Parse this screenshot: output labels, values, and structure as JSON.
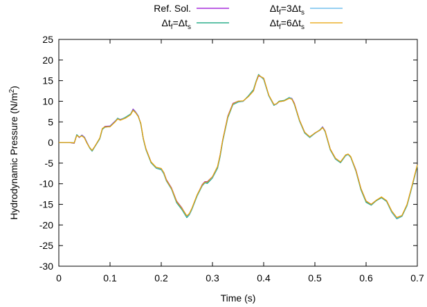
{
  "chart_data": {
    "type": "line",
    "xlabel": "Time (s)",
    "ylabel": "Hydrodynamic Pressure (N/m²)",
    "xlim": [
      0,
      0.7
    ],
    "ylim": [
      -30,
      25
    ],
    "xticks": [
      "0",
      "0.1",
      "0.2",
      "0.3",
      "0.4",
      "0.5",
      "0.6",
      "0.7"
    ],
    "yticks": [
      "25",
      "20",
      "15",
      "10",
      "5",
      "0",
      "-5",
      "-10",
      "-15",
      "-20",
      "-25",
      "-30"
    ],
    "grid": false,
    "legend_position": "top",
    "x": [
      0.0,
      0.02,
      0.03,
      0.035,
      0.04,
      0.045,
      0.05,
      0.055,
      0.06,
      0.065,
      0.07,
      0.08,
      0.085,
      0.09,
      0.1,
      0.11,
      0.115,
      0.12,
      0.13,
      0.14,
      0.145,
      0.15,
      0.155,
      0.16,
      0.165,
      0.17,
      0.18,
      0.19,
      0.2,
      0.205,
      0.21,
      0.22,
      0.23,
      0.24,
      0.25,
      0.255,
      0.26,
      0.27,
      0.28,
      0.285,
      0.29,
      0.3,
      0.31,
      0.315,
      0.32,
      0.33,
      0.34,
      0.35,
      0.36,
      0.37,
      0.38,
      0.385,
      0.39,
      0.4,
      0.41,
      0.42,
      0.425,
      0.43,
      0.44,
      0.45,
      0.455,
      0.46,
      0.47,
      0.48,
      0.49,
      0.5,
      0.51,
      0.515,
      0.52,
      0.53,
      0.54,
      0.55,
      0.56,
      0.565,
      0.57,
      0.58,
      0.59,
      0.6,
      0.61,
      0.62,
      0.63,
      0.64,
      0.65,
      0.66,
      0.67,
      0.68,
      0.69,
      0.7
    ],
    "series": [
      {
        "name": "Ref. Sol.",
        "color": "#9400d3",
        "values": [
          0.0,
          0.0,
          -0.2,
          1.8,
          1.2,
          1.8,
          1.3,
          0.0,
          -1.2,
          -2.0,
          -1.0,
          1.0,
          3.3,
          3.9,
          4.0,
          5.2,
          5.8,
          5.6,
          6.0,
          6.8,
          8.1,
          7.4,
          6.5,
          4.6,
          0.9,
          -1.5,
          -4.7,
          -6.1,
          -6.4,
          -7.3,
          -9.0,
          -11.0,
          -14.2,
          -15.8,
          -17.9,
          -17.3,
          -16.0,
          -12.8,
          -10.2,
          -9.5,
          -9.5,
          -8.3,
          -5.9,
          -3.0,
          0.6,
          6.4,
          9.5,
          10.0,
          10.0,
          11.2,
          12.5,
          14.6,
          16.2,
          15.6,
          11.4,
          9.2,
          9.3,
          9.9,
          10.1,
          10.8,
          10.7,
          9.5,
          5.4,
          2.5,
          1.3,
          2.3,
          3.0,
          3.8,
          2.8,
          -1.6,
          -3.8,
          -4.8,
          -3.1,
          -2.9,
          -3.5,
          -6.6,
          -11.2,
          -14.2,
          -15.0,
          -14.0,
          -13.3,
          -14.1,
          -16.7,
          -18.3,
          -17.8,
          -15.1,
          -10.4,
          -5.5
        ]
      },
      {
        "name": "Δtf=Δts",
        "color": "#009e73",
        "values": [
          0.0,
          0.0,
          -0.1,
          1.9,
          1.3,
          1.7,
          1.2,
          -0.1,
          -1.3,
          -2.1,
          -1.1,
          0.9,
          3.2,
          3.7,
          3.9,
          5.1,
          5.9,
          5.5,
          6.1,
          6.9,
          7.9,
          7.3,
          6.4,
          4.5,
          0.8,
          -1.7,
          -4.9,
          -6.2,
          -6.6,
          -7.6,
          -9.3,
          -11.3,
          -14.6,
          -16.2,
          -18.2,
          -17.5,
          -16.2,
          -13.0,
          -10.5,
          -9.8,
          -9.9,
          -8.6,
          -6.2,
          -3.4,
          0.3,
          6.0,
          9.2,
          9.8,
          10.0,
          11.3,
          12.8,
          14.8,
          16.5,
          15.3,
          11.3,
          9.0,
          9.4,
          10.0,
          10.2,
          10.9,
          10.6,
          9.2,
          5.2,
          2.3,
          1.2,
          2.2,
          3.1,
          3.7,
          2.6,
          -1.8,
          -4.0,
          -4.9,
          -3.2,
          -2.9,
          -3.6,
          -6.9,
          -11.5,
          -14.5,
          -15.2,
          -14.1,
          -13.4,
          -14.3,
          -16.9,
          -18.5,
          -17.9,
          -15.3,
          -10.6,
          -5.7
        ]
      },
      {
        "name": "Δtf=3Δts",
        "color": "#56b4e9",
        "values": [
          0.0,
          0.0,
          -0.1,
          1.8,
          1.3,
          1.7,
          1.2,
          -0.1,
          -1.2,
          -2.0,
          -1.1,
          1.0,
          3.3,
          3.8,
          3.9,
          5.1,
          5.8,
          5.5,
          6.0,
          6.8,
          7.9,
          7.3,
          6.4,
          4.6,
          0.9,
          -1.6,
          -4.8,
          -6.1,
          -6.5,
          -7.5,
          -9.2,
          -11.2,
          -14.4,
          -16.0,
          -18.0,
          -17.4,
          -16.1,
          -12.9,
          -10.4,
          -9.7,
          -9.7,
          -8.5,
          -6.0,
          -3.2,
          0.4,
          6.2,
          9.3,
          9.9,
          10.0,
          11.2,
          12.6,
          14.7,
          16.4,
          15.4,
          11.3,
          9.1,
          9.3,
          9.9,
          10.1,
          10.8,
          10.6,
          9.3,
          5.3,
          2.4,
          1.3,
          2.2,
          3.0,
          3.7,
          2.7,
          -1.7,
          -3.9,
          -4.8,
          -3.1,
          -2.9,
          -3.5,
          -6.8,
          -11.3,
          -14.3,
          -15.1,
          -14.0,
          -13.3,
          -14.2,
          -16.8,
          -18.4,
          -17.8,
          -15.2,
          -10.5,
          -5.6
        ]
      },
      {
        "name": "Δtf=6Δts",
        "color": "#e69f00",
        "values": [
          0.0,
          0.0,
          -0.1,
          1.7,
          1.3,
          1.6,
          1.1,
          -0.2,
          -1.2,
          -1.9,
          -1.0,
          1.1,
          3.4,
          3.8,
          3.8,
          5.0,
          5.7,
          5.4,
          5.9,
          6.7,
          7.8,
          7.2,
          6.3,
          4.7,
          1.0,
          -1.5,
          -4.7,
          -6.0,
          -6.3,
          -7.3,
          -9.1,
          -11.1,
          -14.3,
          -15.9,
          -17.8,
          -17.2,
          -15.9,
          -12.7,
          -10.3,
          -9.6,
          -9.6,
          -8.3,
          -5.8,
          -3.0,
          0.6,
          6.3,
          9.4,
          10.0,
          10.1,
          11.1,
          12.5,
          14.6,
          16.3,
          15.6,
          11.5,
          9.2,
          9.4,
          9.9,
          10.1,
          10.7,
          10.5,
          9.4,
          5.4,
          2.5,
          1.4,
          2.3,
          3.0,
          3.6,
          2.8,
          -1.6,
          -3.8,
          -4.7,
          -3.0,
          -2.8,
          -3.4,
          -6.7,
          -11.2,
          -14.2,
          -15.0,
          -14.0,
          -13.2,
          -14.1,
          -16.6,
          -18.2,
          -17.7,
          -15.0,
          -10.3,
          -5.4
        ]
      }
    ]
  }
}
